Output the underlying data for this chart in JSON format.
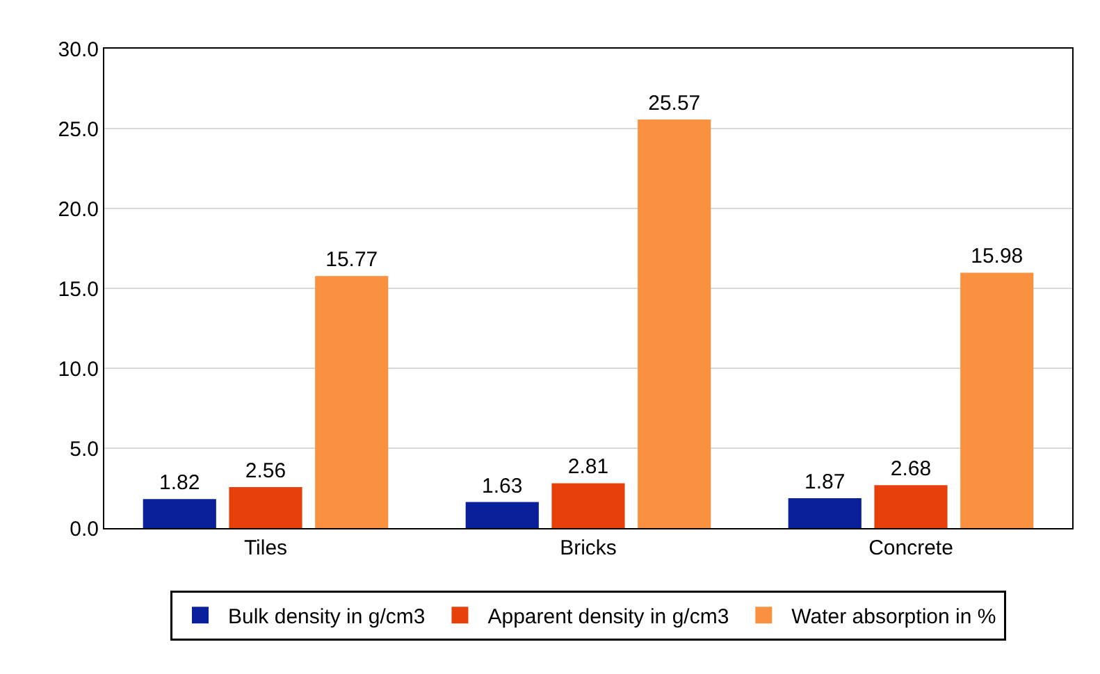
{
  "chart_data": {
    "type": "bar",
    "categories": [
      "Tiles",
      "Bricks",
      "Concrete"
    ],
    "series": [
      {
        "name": "Bulk density in g/cm3",
        "color": "#0a1f9a",
        "values": [
          1.82,
          1.63,
          1.87
        ]
      },
      {
        "name": "Apparent density in g/cm3",
        "color": "#e8400c",
        "values": [
          2.56,
          2.81,
          2.68
        ]
      },
      {
        "name": "Water absorption in %",
        "color": "#f99140",
        "values": [
          15.77,
          25.57,
          15.98
        ]
      }
    ],
    "ylim": [
      0,
      30
    ],
    "yticks": [
      {
        "value": 0,
        "label": "0.0"
      },
      {
        "value": 5,
        "label": "5.0"
      },
      {
        "value": 10,
        "label": "10.0"
      },
      {
        "value": 15,
        "label": "15.0"
      },
      {
        "value": 20,
        "label": "20.0"
      },
      {
        "value": 25,
        "label": "25.0"
      },
      {
        "value": 30,
        "label": "30.0"
      }
    ],
    "grid": "y",
    "legend": "bottom",
    "data_labels": true
  }
}
